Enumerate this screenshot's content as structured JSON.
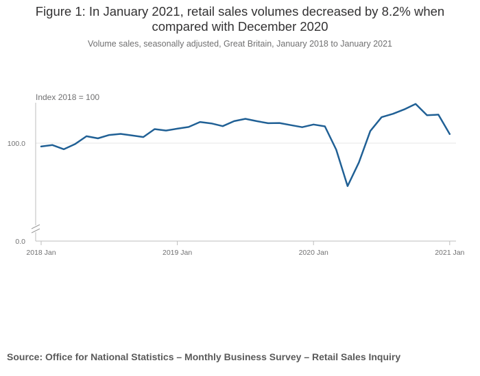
{
  "header": {
    "title_line1": "Figure 1: In January 2021, retail sales volumes decreased by 8.2% when",
    "title_line2": "compared with December 2020",
    "subtitle": "Volume sales, seasonally adjusted, Great Britain, January 2018 to January 2021"
  },
  "source": "Source: Office for National Statistics – Monthly Business Survey – Retail Sales Inquiry",
  "chart_data": {
    "type": "line",
    "title": "Figure 1: In January 2021, retail sales volumes decreased by 8.2% when compared with December 2020",
    "subtitle": "Volume sales, seasonally adjusted, Great Britain, January 2018 to January 2021",
    "ylabel": "Index 2018 = 100",
    "xlabel": "",
    "y_axis_break": true,
    "y_ticks": [
      {
        "value": 0,
        "label": "0.0"
      },
      {
        "value": 100,
        "label": "100.0"
      }
    ],
    "x_ticks": [
      "2018 Jan",
      "2019 Jan",
      "2020 Jan",
      "2021 Jan"
    ],
    "grid": "horizontal",
    "line_color": "#206095",
    "x": [
      "2018-01",
      "2018-02",
      "2018-03",
      "2018-04",
      "2018-05",
      "2018-06",
      "2018-07",
      "2018-08",
      "2018-09",
      "2018-10",
      "2018-11",
      "2018-12",
      "2019-01",
      "2019-02",
      "2019-03",
      "2019-04",
      "2019-05",
      "2019-06",
      "2019-07",
      "2019-08",
      "2019-09",
      "2019-10",
      "2019-11",
      "2019-12",
      "2020-01",
      "2020-02",
      "2020-03",
      "2020-04",
      "2020-05",
      "2020-06",
      "2020-07",
      "2020-08",
      "2020-09",
      "2020-10",
      "2020-11",
      "2020-12",
      "2021-01"
    ],
    "values": [
      98.4,
      99.1,
      97.1,
      99.6,
      103.3,
      102.3,
      103.9,
      104.4,
      103.7,
      102.9,
      106.7,
      106.0,
      106.9,
      107.7,
      110.1,
      109.4,
      108.1,
      110.5,
      111.6,
      110.5,
      109.5,
      109.6,
      108.6,
      107.6,
      108.9,
      108.0,
      96.9,
      79.5,
      90.8,
      105.8,
      112.4,
      114.0,
      116.1,
      118.7,
      113.3,
      113.6,
      104.3
    ]
  }
}
